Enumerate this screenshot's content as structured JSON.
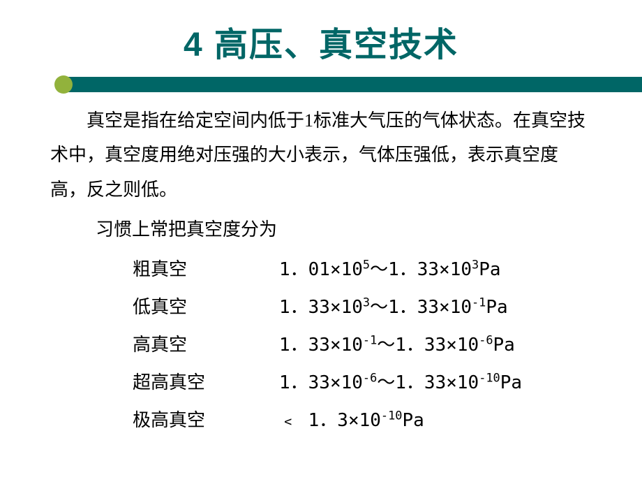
{
  "title": "4 高压、真空技术",
  "colors": {
    "title_color": "#006666",
    "bar_color": "#006666",
    "bullet_color": "#92b23c",
    "text_color": "#000000",
    "background": "#ffffff"
  },
  "typography": {
    "title_fontsize": 48,
    "body_fontsize": 26,
    "title_font": "SimHei",
    "body_font": "SimSun"
  },
  "paragraph": "真空是指在给定空间内低于1标准大气压的气体状态。在真空技术中，真空度用绝对压强的大小表示，气体压强低，表示真空度高，反之则低。",
  "sub_heading": "习惯上常把真空度分为",
  "vacuum_levels": [
    {
      "label": "粗真空",
      "value_html": "1．01×10<sup>5</sup>～1．33×10<sup>3</sup>Pa"
    },
    {
      "label": "低真空",
      "value_html": "1．33×10<sup>3</sup>～1．33×10<sup>-1</sup>Pa"
    },
    {
      "label": "高真空",
      "value_html": "1．33×10<sup>-1</sup>～1．33×10<sup>-6</sup>Pa"
    },
    {
      "label": "超高真空",
      "value_html": "1．33×10<sup>-6</sup>～1．33×10<sup>-10</sup>Pa"
    },
    {
      "label": "极高真空",
      "value_html": "﹤ 1．3×10<sup>-10</sup>Pa"
    }
  ]
}
